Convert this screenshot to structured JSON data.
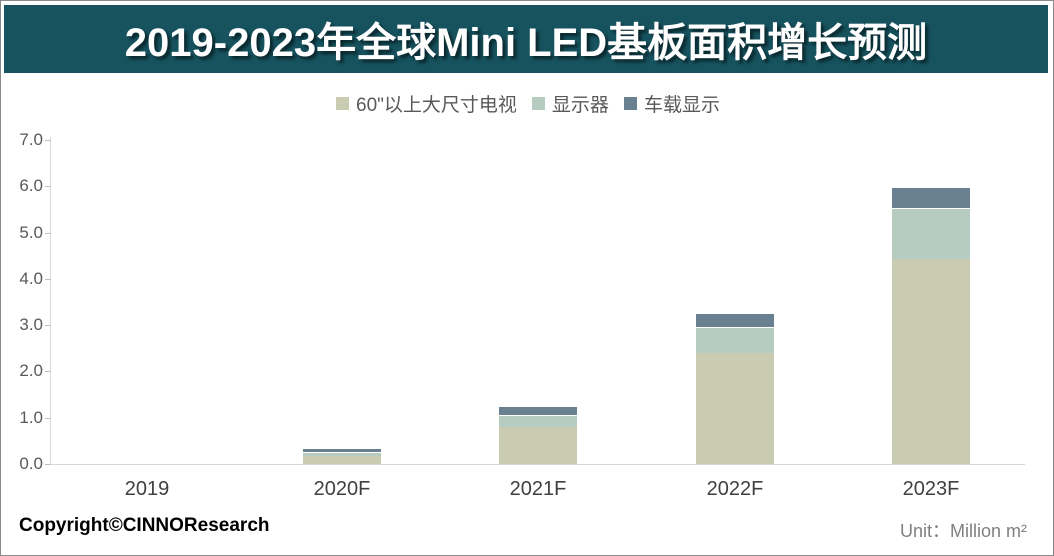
{
  "title": "2019-2023年全球Mini LED基板面积增长预测",
  "legend": {
    "items": [
      {
        "label": "60\"以上大尺寸电视",
        "color": "#c9ccb1"
      },
      {
        "label": "显示器",
        "color": "#b7ccc1"
      },
      {
        "label": "车载显示",
        "color": "#68808f"
      }
    ]
  },
  "footer": {
    "copyright": "Copyright©CINNOResearch",
    "unit": "Unit：Million m²"
  },
  "colors": {
    "title_bar_bg": "#16535f",
    "title_text": "#ffffff",
    "series_tv": "#c9ccb1",
    "series_monitor": "#b7ccc1",
    "series_vehicle": "#68808f",
    "axis_line": "#d9d9d9",
    "tick": "#bfbfbf",
    "y_label_text": "#595959",
    "x_label_text": "#404040",
    "legend_text": "#595959",
    "unit_text": "#7f7f7f",
    "frame_border": "#8a8a8a"
  },
  "chart_data": {
    "type": "bar",
    "stacked": true,
    "title": "2019-2023年全球Mini LED基板面积增长预测",
    "categories": [
      "2019",
      "2020F",
      "2021F",
      "2022F",
      "2023F"
    ],
    "series": [
      {
        "name": "60\"以上大尺寸电视",
        "color": "#c9ccb1",
        "values": [
          0,
          0.18,
          0.8,
          2.4,
          4.43
        ]
      },
      {
        "name": "显示器",
        "color": "#b7ccc1",
        "values": [
          0,
          0.09,
          0.25,
          0.57,
          1.1
        ]
      },
      {
        "name": "车载显示",
        "color": "#68808f",
        "values": [
          0,
          0.08,
          0.2,
          0.3,
          0.45
        ]
      }
    ],
    "totals": [
      0,
      0.35,
      1.25,
      3.27,
      5.98
    ],
    "xlabel": "",
    "ylabel": "Million m²",
    "ylim": [
      0,
      7
    ],
    "ytick_labels": [
      "0.0",
      "1.0",
      "2.0",
      "3.0",
      "4.0",
      "5.0",
      "6.0",
      "7.0"
    ],
    "grid": false,
    "legend_position": "top-center"
  }
}
